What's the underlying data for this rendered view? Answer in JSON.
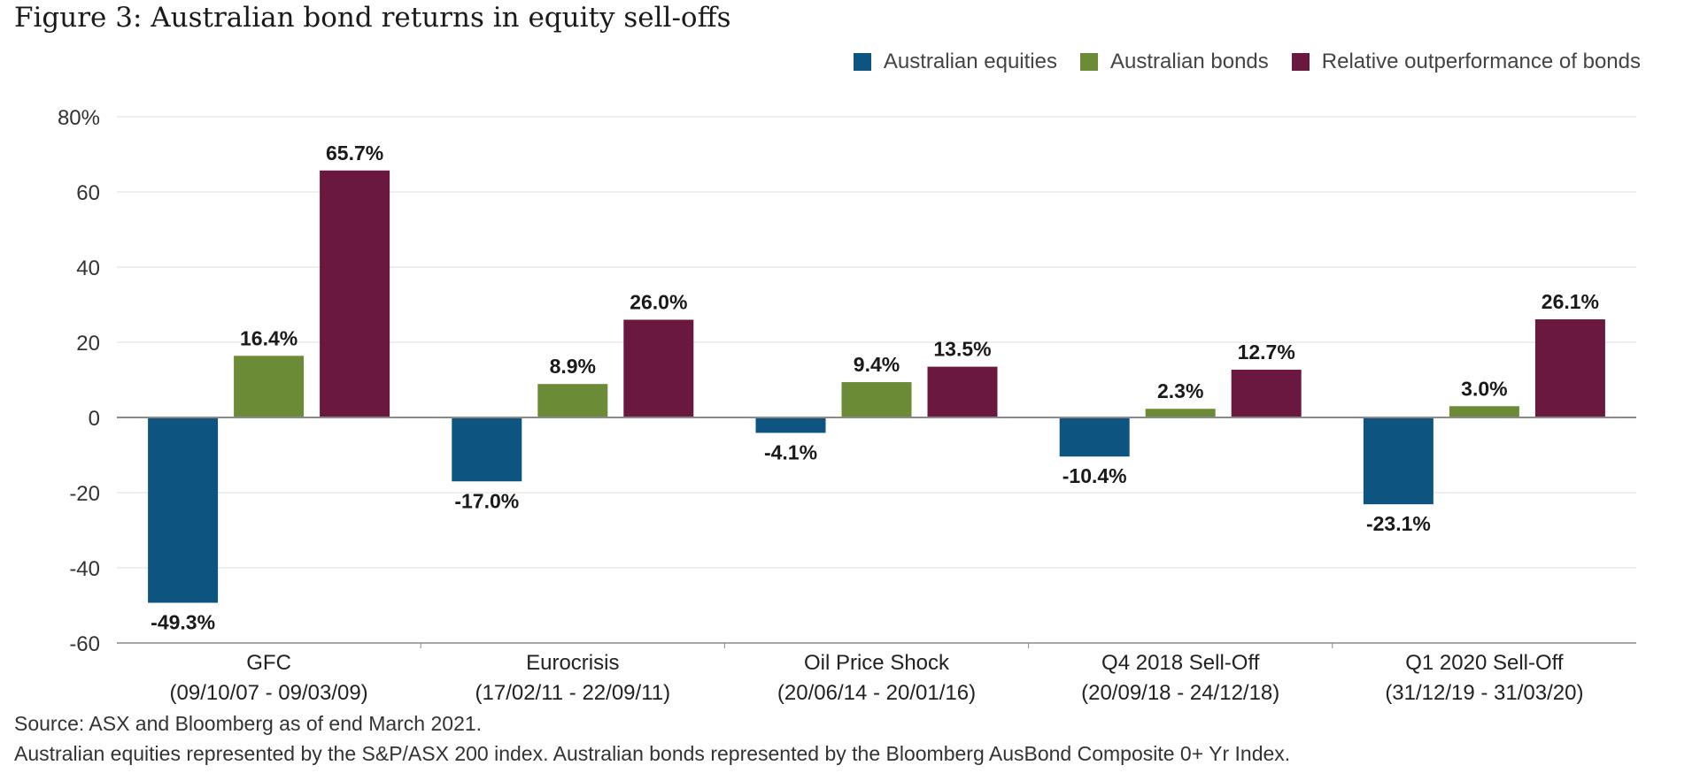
{
  "chart_data": {
    "type": "bar",
    "title": "Figure 3: Australian bond returns in equity sell-offs",
    "categories": [
      "GFC",
      "Eurocrisis",
      "Oil Price Shock",
      "Q4 2018 Sell-Off",
      "Q1 2020 Sell-Off"
    ],
    "category_dates": [
      "(09/10/07 - 09/03/09)",
      "(17/02/11 - 22/09/11)",
      "(20/06/14 - 20/01/16)",
      "(20/09/18 - 24/12/18)",
      "(31/12/19 - 31/03/20)"
    ],
    "series": [
      {
        "name": "Australian equities",
        "color": "#0d5580",
        "values": [
          -49.3,
          -17.0,
          -4.1,
          -10.4,
          -23.1
        ],
        "labels": [
          "-49.3%",
          "-17.0%",
          "-4.1%",
          "-10.4%",
          "-23.1%"
        ]
      },
      {
        "name": "Australian bonds",
        "color": "#6c8b36",
        "values": [
          16.4,
          8.9,
          9.4,
          2.3,
          3.0
        ],
        "labels": [
          "16.4%",
          "8.9%",
          "9.4%",
          "2.3%",
          "3.0%"
        ]
      },
      {
        "name": "Relative outperformance of bonds",
        "color": "#6a1840",
        "values": [
          65.7,
          26.0,
          13.5,
          12.7,
          26.1
        ],
        "labels": [
          "65.7%",
          "26.0%",
          "13.5%",
          "12.7%",
          "26.1%"
        ]
      }
    ],
    "ylim": [
      -60,
      80
    ],
    "yticks": [
      80,
      60,
      40,
      20,
      0,
      -20,
      -40,
      -60
    ],
    "ytick_labels": [
      "80%",
      "60",
      "40",
      "20",
      "0",
      "-20",
      "-40",
      "-60"
    ],
    "grid": true,
    "legend": "top-right"
  },
  "footnotes": {
    "source": "Source: ASX and Bloomberg as of end March 2021.",
    "note": "Australian equities represented by the S&P/ASX 200 index. Australian bonds represented by the Bloomberg AusBond Composite 0+ Yr Index."
  }
}
